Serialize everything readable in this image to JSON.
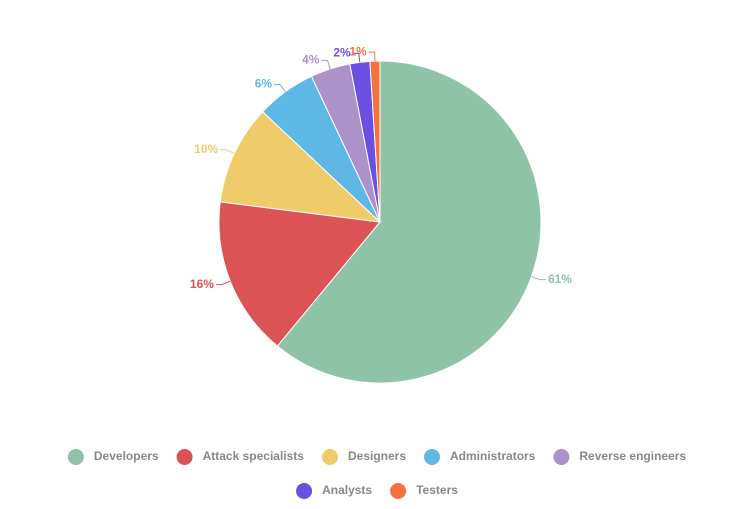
{
  "chart_data": {
    "type": "pie",
    "categories": [
      "Developers",
      "Attack specialists",
      "Designers",
      "Administrators",
      "Reverse engineers",
      "Analysts",
      "Testers"
    ],
    "values": [
      61,
      16,
      10,
      6,
      4,
      2,
      1
    ],
    "value_labels": [
      "61%",
      "16%",
      "10%",
      "6%",
      "4%",
      "2%",
      "1%"
    ],
    "colors": [
      "#8fc3a7",
      "#dc5356",
      "#f0cb69",
      "#5fb7e5",
      "#ab92c9",
      "#6a4fe0",
      "#f3733e"
    ],
    "legend": "bottom"
  }
}
